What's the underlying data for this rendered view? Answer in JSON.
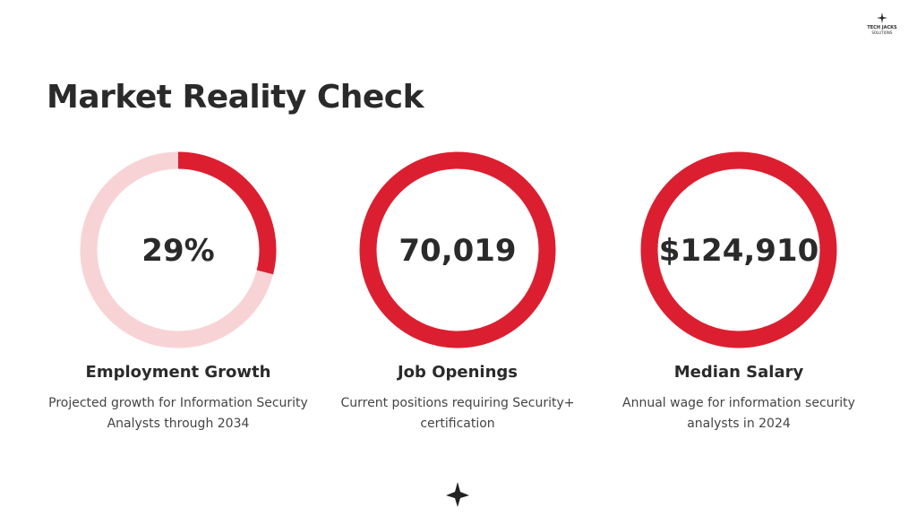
{
  "logo": {
    "name": "TECH JACKS",
    "tagline": "SOLUTIONS"
  },
  "title": "Market Reality Check",
  "stats": [
    {
      "value": 29,
      "value_label": "29%",
      "title": "Employment Growth",
      "description": "Projected growth for Information Security Analysts through 2034"
    },
    {
      "value_label": "70,019",
      "title": "Job Openings",
      "description": "Current positions requiring Security+ certification"
    },
    {
      "value_label": "$124,910",
      "title": "Median Salary",
      "description": "Annual wage for information security analysts in 2024"
    }
  ]
}
